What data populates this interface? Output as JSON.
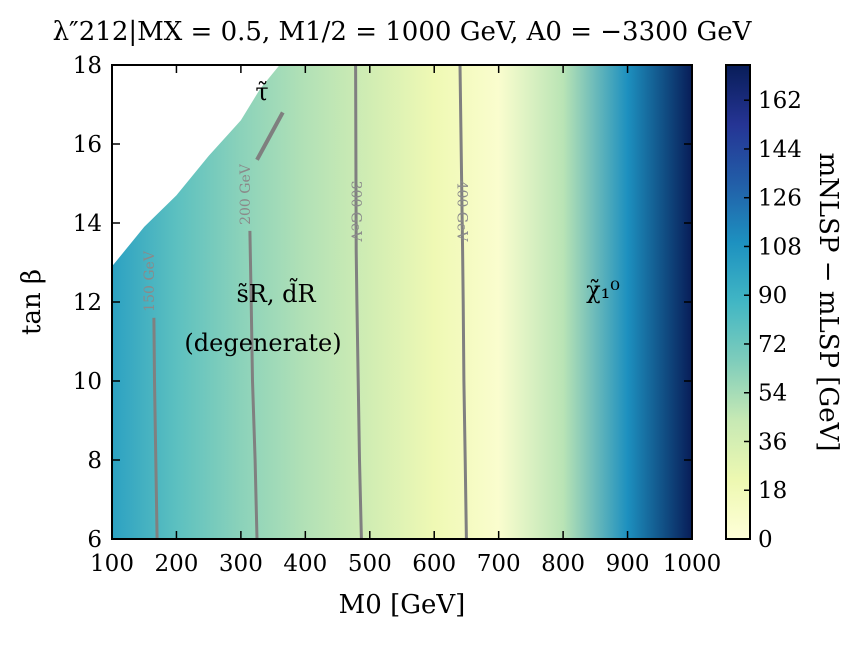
{
  "chart_data": {
    "type": "heatmap",
    "title": "λ″212|MX = 0.5, M1/2 = 1000 GeV, A0 = −3300 GeV",
    "xlabel": "M0 [GeV]",
    "ylabel": "tan β",
    "xlim": [
      100,
      1000
    ],
    "ylim": [
      6,
      18
    ],
    "x_ticks": [
      "100",
      "200",
      "300",
      "400",
      "500",
      "600",
      "700",
      "800",
      "900",
      "1000"
    ],
    "y_ticks": [
      "6",
      "8",
      "10",
      "12",
      "14",
      "16",
      "18"
    ],
    "colorbar": {
      "label": "mNLSP − mLSP [GeV]",
      "range": [
        0,
        175
      ],
      "ticks": [
        "0",
        "18",
        "36",
        "54",
        "72",
        "90",
        "108",
        "126",
        "144",
        "162"
      ],
      "colormap": [
        "#ffffd9",
        "#edf8b1",
        "#c7e9b4",
        "#7fcdbb",
        "#41b6c4",
        "#1d91c0",
        "#225ea8",
        "#253494",
        "#081d58"
      ]
    },
    "mass_difference_profile": {
      "m0": [
        100,
        200,
        300,
        400,
        500,
        600,
        700,
        800,
        900,
        1000
      ],
      "delta_m_gev": [
        100,
        78,
        62,
        50,
        38,
        20,
        6,
        48,
        110,
        175
      ]
    },
    "contours": [
      {
        "label": "150 GeV",
        "points": [
          [
            170,
            6
          ],
          [
            168,
            8
          ],
          [
            166,
            10
          ],
          [
            165,
            11.6
          ]
        ]
      },
      {
        "label": "200 GeV",
        "points": [
          [
            325,
            6
          ],
          [
            322,
            8
          ],
          [
            318,
            10
          ],
          [
            316,
            12
          ],
          [
            314,
            13.8
          ]
        ]
      },
      {
        "label": "300 GeV",
        "points": [
          [
            487,
            6
          ],
          [
            484,
            8
          ],
          [
            482,
            10
          ],
          [
            480,
            12
          ],
          [
            479,
            13.3
          ],
          [
            478,
            18
          ]
        ]
      },
      {
        "label": "400 GeV",
        "points": [
          [
            650,
            6
          ],
          [
            648,
            8
          ],
          [
            646,
            10
          ],
          [
            645,
            12
          ],
          [
            644,
            13.3
          ],
          [
            640,
            18
          ]
        ]
      }
    ],
    "stau_boundary": [
      [
        100,
        12.9
      ],
      [
        150,
        13.9
      ],
      [
        200,
        14.7
      ],
      [
        250,
        15.7
      ],
      [
        300,
        16.6
      ],
      [
        330,
        17.4
      ],
      [
        360,
        18
      ]
    ],
    "stau_line": [
      [
        325,
        15.6
      ],
      [
        365,
        16.8
      ]
    ],
    "annotations": {
      "stau": "τ̃",
      "squarks": "s̃R, d̃R",
      "degenerate": "(degenerate)",
      "neutralino": "χ̃₁⁰"
    }
  }
}
